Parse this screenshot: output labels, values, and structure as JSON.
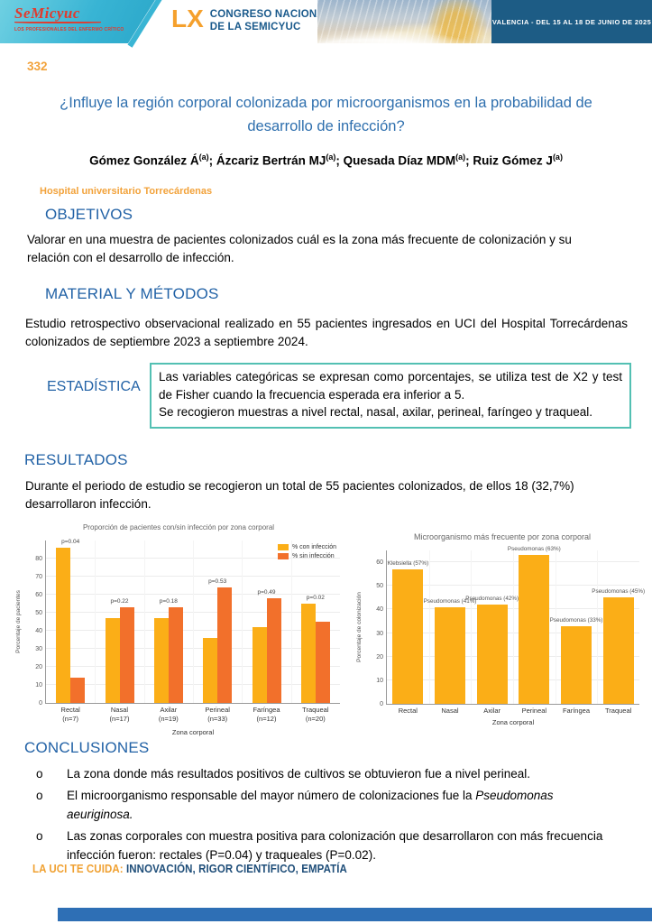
{
  "header": {
    "logo": {
      "name": "SeMicyuc",
      "tagline": "LOS PROFESIONALES DEL ENFERMO CRÍTICO"
    },
    "congress": {
      "numeral": "LX",
      "line1": "CONGRESO NACIONAL",
      "line2": "DE LA SEMICYUC"
    },
    "banner": "VALENCIA - DEL 15 AL 18 DE JUNIO DE 2025"
  },
  "poster": {
    "number": "332",
    "title": "¿Influye la región corporal colonizada por microorganismos en la probabilidad de desarrollo de infección?",
    "authors": [
      {
        "name": "Gómez González Á",
        "sup": "(a)"
      },
      {
        "name": "Ázcariz Bertrán MJ",
        "sup": "(a)"
      },
      {
        "name": "Quesada Díaz MDM",
        "sup": "(a)"
      },
      {
        "name": "Ruiz Gómez J",
        "sup": "(a)"
      }
    ],
    "affiliation": "Hospital universitario Torrecárdenas"
  },
  "sections": {
    "objetivos": {
      "heading": "OBJETIVOS",
      "text": "Valorar en una muestra de pacientes colonizados cuál es la zona más frecuente de colonización y su relación con el desarrollo de infección."
    },
    "material": {
      "heading": "MATERIAL Y MÉTODOS",
      "text": "Estudio retrospectivo observacional realizado en 55 pacientes ingresados en UCI del Hospital Torrecárdenas colonizados de septiembre 2023 a septiembre 2024."
    },
    "estadistica": {
      "heading": "ESTADÍSTICA",
      "lines": [
        "Las variables categóricas se expresan como porcentajes, se utiliza test de X2 y test de Fisher cuando la frecuencia esperada era inferior a 5.",
        "Se recogieron muestras a nivel rectal, nasal, axilar, perineal, faríngeo y traqueal."
      ]
    },
    "resultados": {
      "heading": "RESULTADOS",
      "text": "Durante el periodo de estudio se recogieron un total de 55 pacientes colonizados, de ellos 18 (32,7%) desarrollaron infección."
    },
    "conclusiones": {
      "heading": "CONCLUSIONES",
      "marker": "o",
      "items": [
        {
          "text": "La zona donde más resultados positivos de cultivos se obtuvieron fue a nivel perineal."
        },
        {
          "text": "El microorganismo responsable del mayor número de colonizaciones fue la ",
          "italic": "Pseudomonas aeuriginosa."
        },
        {
          "text": "Las zonas corporales con muestra positiva para colonización que desarrollaron con más frecuencia infección fueron: rectales (P=0.04) y traqueales (P=0.02)."
        }
      ]
    }
  },
  "footer": {
    "prefix": "LA UCI TE CUIDA:",
    "text": "INNOVACIÓN, RIGOR CIENTÍFICO, EMPATÍA"
  },
  "colors": {
    "accent_orange": "#F2A23A",
    "heading_blue": "#2262A6",
    "title_blue": "#2E6FAE",
    "box_teal": "#53C0B3",
    "bar_yellow": "#FBAE17",
    "bar_orange": "#F2702B",
    "band_blue": "#1D5C85",
    "footer_blue": "#1F4E79",
    "bottom_bar_blue": "#2E6FB5"
  },
  "chart_data": [
    {
      "type": "bar",
      "title": "Proporción de pacientes con/sin infección por zona corporal",
      "categories": [
        "Rectal",
        "Nasal",
        "Axilar",
        "Perineal",
        "Faríngea",
        "Traqueal"
      ],
      "category_n": [
        "(n=7)",
        "(n=17)",
        "(n=19)",
        "(n=33)",
        "(n=12)",
        "(n=20)"
      ],
      "series": [
        {
          "name": "% con infección",
          "color": "#FBAE17",
          "values": [
            86,
            47,
            47,
            36,
            42,
            55
          ]
        },
        {
          "name": "% sin infección",
          "color": "#F2702B",
          "values": [
            14,
            53,
            53,
            64,
            58,
            45
          ]
        }
      ],
      "p_values": [
        "p=0.04",
        "p=0.22",
        "p=0.18",
        "p=0.53",
        "p=0.49",
        "p=0.02"
      ],
      "xlabel": "Zona corporal",
      "ylabel": "Porcentaje de pacientes",
      "ylim": [
        0,
        90
      ],
      "yticks": [
        0,
        10,
        20,
        30,
        40,
        50,
        60,
        70,
        80
      ],
      "grid": true,
      "legend_position": "top-right"
    },
    {
      "type": "bar",
      "title": "Microorganismo más frecuente por zona corporal",
      "categories": [
        "Rectal",
        "Nasal",
        "Axilar",
        "Perineal",
        "Faríngea",
        "Traqueal"
      ],
      "values": [
        57,
        41,
        42,
        63,
        33,
        45
      ],
      "bar_labels": [
        "Klebsiella (57%)",
        "Pseudomonas (41%)",
        "Pseudomonas (42%)",
        "Pseudomonas (63%)",
        "Pseudomonas (33%)",
        "Pseudomonas (45%)"
      ],
      "color": "#FBAE17",
      "xlabel": "Zona corporal",
      "ylabel": "Porcentaje de colonización",
      "ylim": [
        0,
        65
      ],
      "yticks": [
        0,
        10,
        20,
        30,
        40,
        50,
        60
      ],
      "grid": true
    }
  ]
}
